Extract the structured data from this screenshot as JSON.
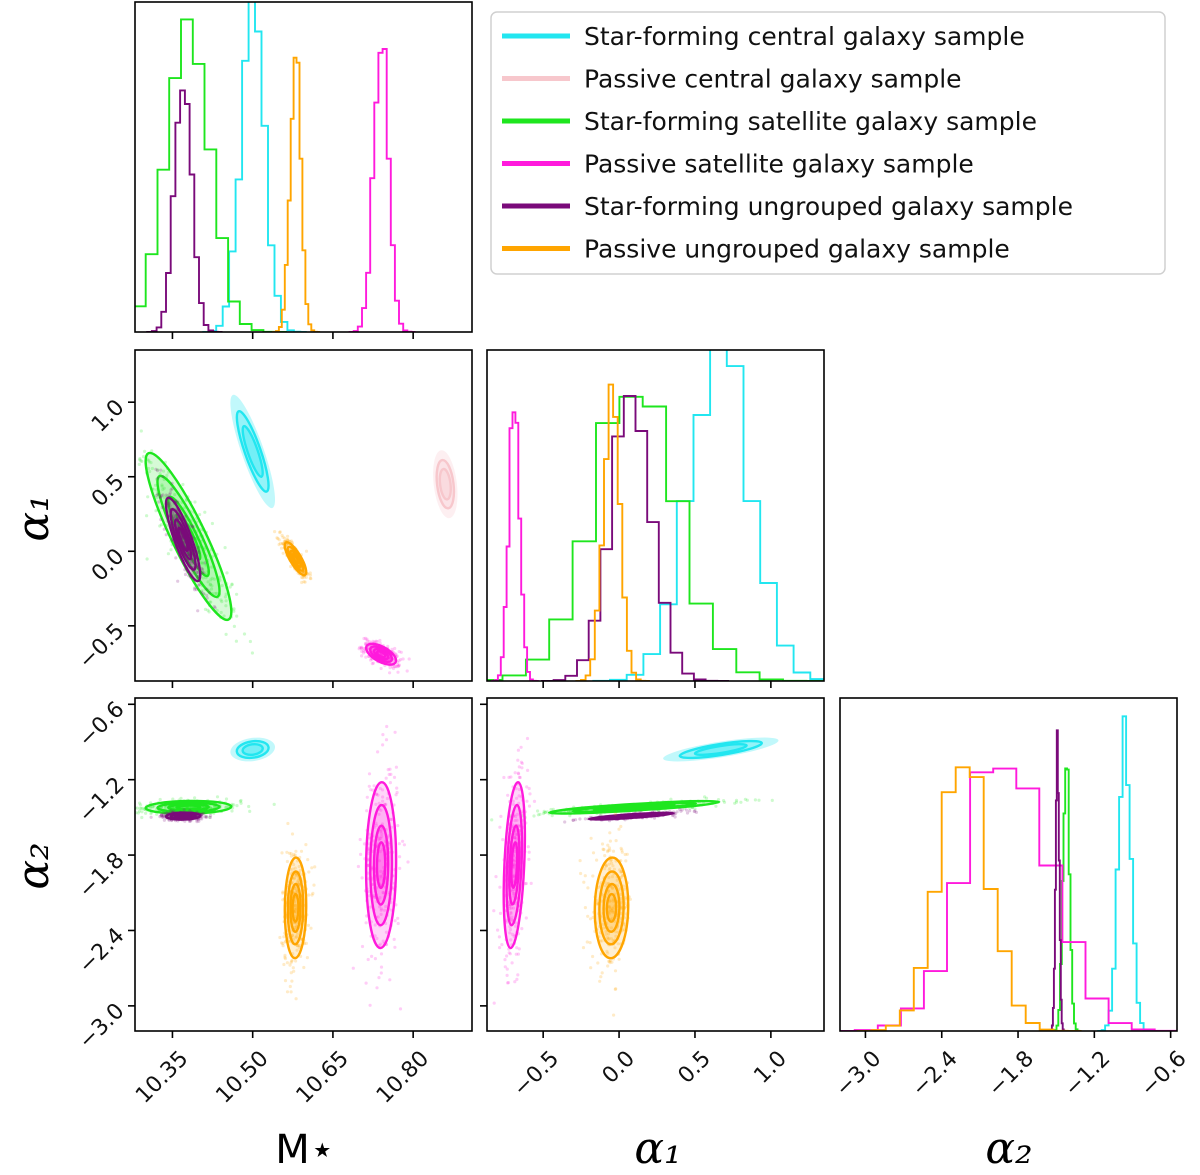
{
  "chart_data": {
    "type": "corner",
    "parameters": [
      {
        "key": "M",
        "label": "M⋆",
        "range": [
          10.28,
          10.91
        ],
        "ticks": [
          10.35,
          10.5,
          10.65,
          10.8
        ],
        "tick_labels": [
          "10.35",
          "10.50",
          "10.65",
          "10.80"
        ]
      },
      {
        "key": "a1",
        "label": "α₁",
        "range": [
          -0.87,
          1.35
        ],
        "ticks": [
          -0.5,
          0.0,
          0.5,
          1.0
        ],
        "tick_labels": [
          "−0.5",
          "0.0",
          "0.5",
          "1.0"
        ]
      },
      {
        "key": "a2",
        "label": "α₂",
        "range": [
          -3.2,
          -0.55
        ],
        "ticks": [
          -3.0,
          -2.4,
          -1.8,
          -1.2,
          -0.6
        ],
        "tick_labels": [
          "−3.0",
          "−2.4",
          "−1.8",
          "−1.2",
          "−0.6"
        ]
      }
    ],
    "legend_position": "top-right",
    "series": [
      {
        "name": "Star-forming central galaxy sample",
        "color": "#22e6f0",
        "mean": {
          "M": 10.5,
          "a1": 0.67,
          "a2": -0.96
        },
        "sd": {
          "M": 0.022,
          "a1": 0.2,
          "a2": 0.05
        },
        "corr": {
          "M_a1": -0.85,
          "M_a2": 0.2,
          "a1_a2": 0.75
        },
        "hist_peak": {
          "M": 1.0,
          "a1": 1.0,
          "a2": 0.9
        },
        "scatter": false
      },
      {
        "name": "Passive central galaxy sample",
        "color": "#f7c7cc",
        "mean": {
          "M": 10.86,
          "a1": 0.45,
          "a2": null
        },
        "sd": {
          "M": 0.012,
          "a1": 0.12,
          "a2": null
        },
        "corr": {
          "M_a1": -0.3
        },
        "hist_peak": {
          "M": 0,
          "a1": 0,
          "a2": 0
        },
        "scatter": false
      },
      {
        "name": "Star-forming satellite galaxy sample",
        "color": "#1ee61e",
        "mean": {
          "M": 10.38,
          "a1": 0.1,
          "a2": -1.42
        },
        "sd": {
          "M": 0.04,
          "a1": 0.28,
          "a2": 0.025
        },
        "corr": {
          "M_a1": -0.9,
          "M_a2": 0.1,
          "a1_a2": 0.85
        },
        "hist_peak": {
          "M": 0.95,
          "a1": 0.88,
          "a2": 0.86
        },
        "scatter": true
      },
      {
        "name": "Passive satellite galaxy sample",
        "color": "#ff1adc",
        "mean": {
          "M": 10.74,
          "a1": -0.69,
          "a2": -1.88
        },
        "sd": {
          "M": 0.014,
          "a1": 0.035,
          "a2": 0.33
        },
        "corr": {
          "M_a1": -0.6,
          "M_a2": 0.05,
          "a1_a2": 0.35
        },
        "hist_peak": {
          "M": 0.88,
          "a1": 0.9,
          "a2": 0.86
        },
        "scatter": true
      },
      {
        "name": "Star-forming ungrouped galaxy sample",
        "color": "#7a0a7a",
        "mean": {
          "M": 10.37,
          "a1": 0.08,
          "a2": -1.49
        },
        "sd": {
          "M": 0.016,
          "a1": 0.14,
          "a2": 0.014
        },
        "corr": {
          "M_a1": -0.85,
          "M_a2": 0.1,
          "a1_a2": 0.85
        },
        "hist_peak": {
          "M": 0.78,
          "a1": 0.82,
          "a2": 0.86
        },
        "scatter": true
      },
      {
        "name": "Passive ungrouped galaxy sample",
        "color": "#ffa500",
        "mean": {
          "M": 10.58,
          "a1": -0.05,
          "a2": -2.22
        },
        "sd": {
          "M": 0.01,
          "a1": 0.055,
          "a2": 0.2
        },
        "corr": {
          "M_a1": -0.8,
          "M_a2": 0.05,
          "a1_a2": 0.05
        },
        "hist_peak": {
          "M": 0.85,
          "a1": 0.88,
          "a2": 0.8
        },
        "scatter": true
      }
    ]
  }
}
